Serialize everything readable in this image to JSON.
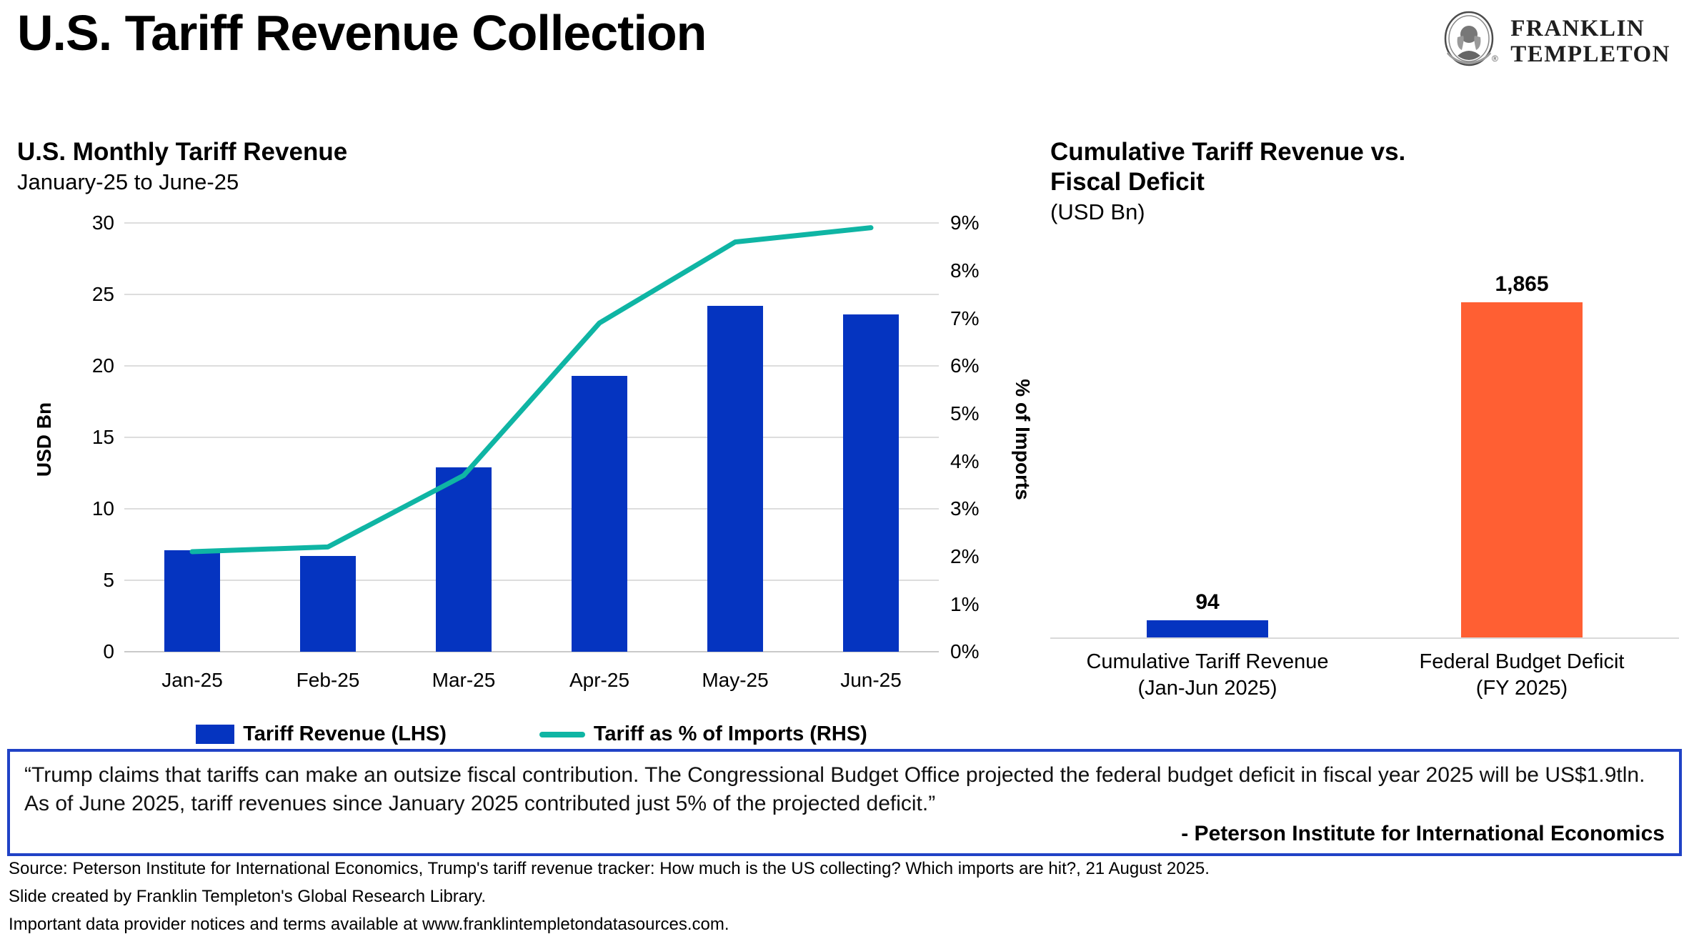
{
  "header": {
    "title": "U.S. Tariff Revenue Collection",
    "brand": {
      "line1": "FRANKLIN",
      "line2": "TEMPLETON",
      "registered": "®"
    }
  },
  "colors": {
    "bar_blue": "#0534c0",
    "line_teal": "#0fb5a4",
    "bar_orange": "#ff5f33",
    "grid": "#dddddd",
    "baseline": "#c9c9c9",
    "quote_border": "#2042c6"
  },
  "chart_data": [
    {
      "id": "monthly_tariff_combo",
      "type": "bar",
      "title": "U.S. Monthly Tariff Revenue",
      "subtitle": "January-25 to June-25",
      "categories": [
        "Jan-25",
        "Feb-25",
        "Mar-25",
        "Apr-25",
        "May-25",
        "Jun-25"
      ],
      "series": [
        {
          "name": "Tariff Revenue (LHS)",
          "type": "bar",
          "axis": "left",
          "color": "#0534c0",
          "values": [
            7.1,
            6.7,
            12.9,
            19.3,
            24.2,
            23.6
          ]
        },
        {
          "name": "Tariff as % of Imports (RHS)",
          "type": "line",
          "axis": "right",
          "color": "#0fb5a4",
          "values": [
            2.1,
            2.2,
            3.7,
            6.9,
            8.6,
            8.9
          ]
        }
      ],
      "left_axis": {
        "label": "USD Bn",
        "min": 0,
        "max": 30,
        "tick_values": [
          0,
          5,
          10,
          15,
          20,
          25,
          30
        ],
        "ticks": [
          "0",
          "5",
          "10",
          "15",
          "20",
          "25",
          "30"
        ]
      },
      "right_axis": {
        "label": "% of Imports",
        "min": 0,
        "max": 9,
        "tick_values": [
          0,
          1,
          2,
          3,
          4,
          5,
          6,
          7,
          8,
          9
        ],
        "ticks": [
          "0%",
          "1%",
          "2%",
          "3%",
          "4%",
          "5%",
          "6%",
          "7%",
          "8%",
          "9%"
        ]
      },
      "grid": "horizontal",
      "legend_position": "bottom"
    },
    {
      "id": "cumulative_vs_deficit",
      "type": "bar",
      "title_line1": "Cumulative Tariff Revenue vs.",
      "title_line2": "Fiscal Deficit",
      "subtitle": "(USD Bn)",
      "categories": [
        [
          "Cumulative Tariff Revenue",
          "(Jan-Jun 2025)"
        ],
        [
          "Federal Budget Deficit",
          "(FY 2025)"
        ]
      ],
      "values": [
        94,
        1865
      ],
      "value_labels": [
        "94",
        "1,865"
      ],
      "colors": [
        "#0534c0",
        "#ff5f33"
      ],
      "ylim": [
        0,
        1950
      ],
      "grid": "off"
    }
  ],
  "quote": {
    "text": "“Trump claims that tariffs can make an outsize fiscal contribution. The Congressional Budget Office projected the federal budget deficit in fiscal year 2025 will be US$1.9tln. As of June 2025, tariff revenues since January 2025 contributed just 5% of the projected deficit.”",
    "attribution": "- Peterson Institute for International Economics"
  },
  "footer": {
    "lines": [
      "Source: Peterson Institute for International Economics, Trump's tariff revenue tracker: How much is the US collecting? Which imports are hit?, 21 August 2025.",
      "Slide created by Franklin Templeton's Global Research Library.",
      "Important data provider notices and terms available at www.franklintempletondatasources.com."
    ]
  }
}
